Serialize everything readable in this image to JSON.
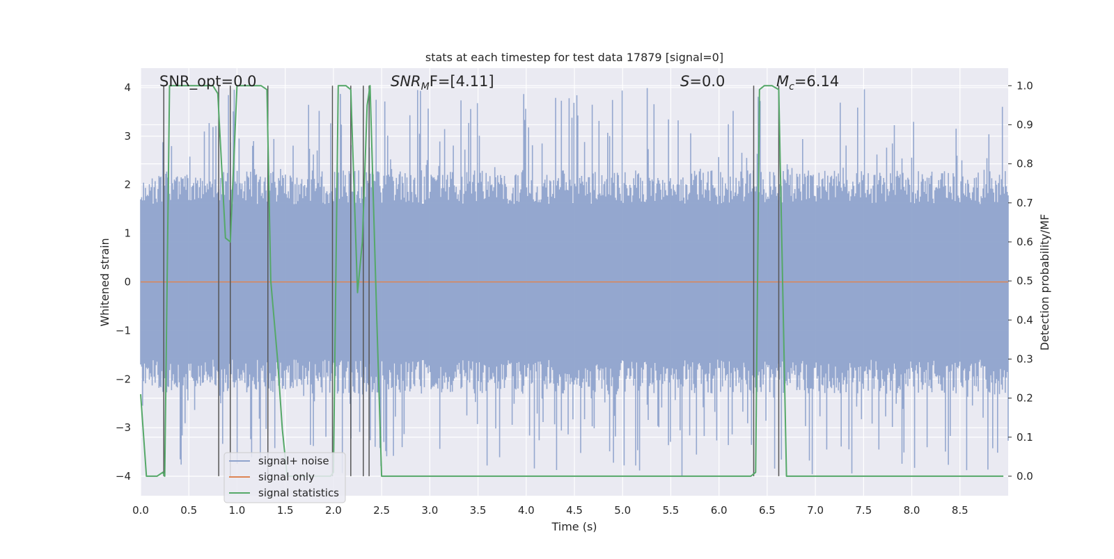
{
  "chart_data": {
    "type": "line",
    "title": "stats at each timestep for test data 17879 [signal=0]",
    "xlabel": "Time (s)",
    "ylabel_left": "Whitened strain",
    "ylabel_right": "Detection probability/MF",
    "xlim": [
      0.0,
      9.0
    ],
    "ylim_left": [
      -4.4,
      4.4
    ],
    "ylim_right": [
      -0.05,
      1.045
    ],
    "x_ticks": [
      0.0,
      0.5,
      1.0,
      1.5,
      2.0,
      2.5,
      3.0,
      3.5,
      4.0,
      4.5,
      5.0,
      5.5,
      6.0,
      6.5,
      7.0,
      7.5,
      8.0,
      8.5
    ],
    "x_tick_labels": [
      "0.0",
      "0.5",
      "1.0",
      "1.5",
      "2.0",
      "2.5",
      "3.0",
      "3.5",
      "4.0",
      "4.5",
      "5.0",
      "5.5",
      "6.0",
      "6.5",
      "7.0",
      "7.5",
      "8.0",
      "8.5"
    ],
    "y_left_ticks": [
      4,
      3,
      2,
      1,
      0,
      -1,
      -2,
      -3,
      -4
    ],
    "y_left_tick_labels": [
      "4",
      "3",
      "2",
      "1",
      "0",
      "−1",
      "−2",
      "−3",
      "−4"
    ],
    "y_right_ticks": [
      1.0,
      0.9,
      0.8,
      0.7,
      0.6,
      0.5,
      0.4,
      0.3,
      0.2,
      0.1,
      0.0
    ],
    "y_right_tick_labels": [
      "1.0",
      "0.9",
      "0.8",
      "0.7",
      "0.6",
      "0.5",
      "0.4",
      "0.3",
      "0.2",
      "0.1",
      "0.0"
    ],
    "annotations": {
      "snr_opt": "SNR_opt=0.0",
      "snr_mf_name": "SNR",
      "snr_mf_sub": "M",
      "snr_mf_rest": "F=[4.11]",
      "s_name": "S",
      "s_rest": "=0.0",
      "mc_name": "M",
      "mc_sub": "c",
      "mc_rest": "=6.14"
    },
    "legend": {
      "position": "lower-left",
      "entries": [
        "signal+ noise",
        "signal only",
        "signal statistics"
      ]
    },
    "colors": {
      "noise": "#8fa3cc",
      "signal_only": "#dd8452",
      "statistics": "#55a868",
      "vlines": "#555555",
      "plot_bg": "#eaeaf2",
      "grid": "#ffffff"
    },
    "series": [
      {
        "name": "signal+ noise",
        "axis": "left",
        "description_values": "whitened strain noise, dense, amplitude mostly within ±2.3, peaks near ±4",
        "typical_amplitude": 1.6,
        "max_amplitude": 4.0,
        "sample_count": 900
      },
      {
        "name": "signal only",
        "axis": "left",
        "x": [
          0.0,
          9.0
        ],
        "y": [
          0.0,
          0.0
        ]
      },
      {
        "name": "signal statistics",
        "axis": "right",
        "x": [
          0.0,
          0.06,
          0.17,
          0.23,
          0.25,
          0.3,
          0.75,
          0.8,
          0.88,
          0.93,
          1.0,
          1.25,
          1.31,
          1.35,
          1.42,
          1.47,
          1.52,
          1.97,
          2.0,
          2.05,
          2.13,
          2.18,
          2.25,
          2.3,
          2.35,
          2.38,
          2.45,
          2.5,
          6.33,
          6.38,
          6.42,
          6.47,
          6.55,
          6.62,
          6.66,
          6.7,
          8.95
        ],
        "y": [
          0.21,
          0.0,
          0.0,
          0.01,
          0.0,
          1.0,
          1.0,
          0.98,
          0.61,
          0.6,
          1.0,
          1.0,
          0.99,
          0.5,
          0.3,
          0.12,
          0.0,
          0.0,
          0.01,
          1.0,
          1.0,
          0.99,
          0.47,
          0.6,
          0.95,
          1.0,
          0.4,
          0.0,
          0.0,
          0.01,
          0.99,
          1.0,
          1.0,
          0.99,
          0.5,
          0.0,
          0.0
        ]
      }
    ],
    "vertical_lines_x": [
      0.24,
      0.81,
      0.93,
      1.32,
      1.99,
      2.18,
      2.31,
      2.37,
      6.36,
      6.62
    ]
  }
}
